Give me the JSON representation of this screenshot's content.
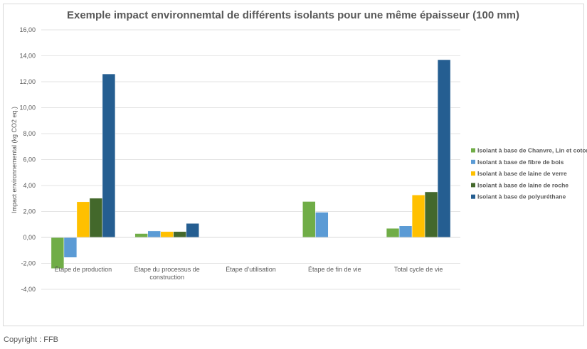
{
  "chart_data": {
    "type": "bar",
    "title": "Exemple impact environnemtal de différents isolants pour une même épaisseur (100 mm)",
    "xlabel": "",
    "ylabel": "Impact environnemental (kg CO2 eq.)",
    "ylim": [
      -4,
      16
    ],
    "yticks": [
      "-4,00",
      "-2,00",
      "0,00",
      "2,00",
      "4,00",
      "6,00",
      "8,00",
      "10,00",
      "12,00",
      "14,00",
      "16,00"
    ],
    "grid": true,
    "legend_position": "right",
    "categories": [
      "Étape de production",
      "Étape du processus de construction",
      "Étape d’utilisation",
      "Étape de fin de vie",
      "Total cycle de vie"
    ],
    "series": [
      {
        "name": "Isolant à base de Chanvre, Lin et coton",
        "color": "#70ad47",
        "values": [
          -2.4,
          0.3,
          0,
          2.77,
          0.7
        ]
      },
      {
        "name": "Isolant à base de fibre de bois",
        "color": "#5b9bd5",
        "values": [
          -1.55,
          0.5,
          0,
          1.94,
          0.89
        ]
      },
      {
        "name": "Isolant à base de laine de verre",
        "color": "#ffc000",
        "values": [
          2.75,
          0.45,
          0,
          0,
          3.27
        ]
      },
      {
        "name": "Isolant à base de laine de roche",
        "color": "#43682b",
        "values": [
          3.02,
          0.45,
          0,
          0,
          3.51
        ]
      },
      {
        "name": "Isolant à base de polyuréthane",
        "color": "#255e91",
        "values": [
          12.6,
          1.08,
          0,
          0,
          13.7
        ]
      }
    ]
  },
  "footer": {
    "copyright": "Copyright : FFB"
  }
}
